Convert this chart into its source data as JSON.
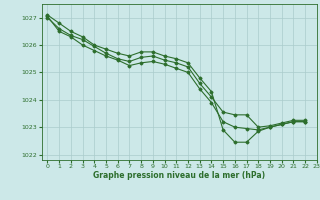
{
  "title": "Graphe pression niveau de la mer (hPa)",
  "xlim": [
    -0.5,
    23
  ],
  "ylim": [
    1021.8,
    1027.5
  ],
  "yticks": [
    1022,
    1023,
    1024,
    1025,
    1026,
    1027
  ],
  "xticks": [
    0,
    1,
    2,
    3,
    4,
    5,
    6,
    7,
    8,
    9,
    10,
    11,
    12,
    13,
    14,
    15,
    16,
    17,
    18,
    19,
    20,
    21,
    22,
    23
  ],
  "background_color": "#cce8e8",
  "grid_color": "#aacccc",
  "line_color": "#2d6e2d",
  "series": [
    [
      1027.1,
      1026.8,
      1026.5,
      1026.3,
      1026.0,
      1025.85,
      1025.7,
      1025.6,
      1025.75,
      1025.75,
      1025.6,
      1025.5,
      1025.35,
      1024.8,
      1024.3,
      1022.9,
      1022.45,
      1022.45,
      1022.85,
      1023.0,
      1023.1,
      1023.2,
      1023.2
    ],
    [
      1027.0,
      1026.6,
      1026.35,
      1026.2,
      1025.95,
      1025.7,
      1025.5,
      1025.4,
      1025.55,
      1025.6,
      1025.45,
      1025.35,
      1025.2,
      1024.6,
      1024.1,
      1023.55,
      1023.45,
      1023.45,
      1023.0,
      1023.05,
      1023.15,
      1023.25,
      1023.25
    ],
    [
      1027.05,
      1026.5,
      1026.3,
      1026.0,
      1025.8,
      1025.6,
      1025.45,
      1025.25,
      1025.35,
      1025.4,
      1025.3,
      1025.15,
      1025.0,
      1024.4,
      1023.9,
      1023.2,
      1023.0,
      1022.95,
      1022.9,
      1023.0,
      1023.1,
      1023.2,
      1023.2
    ]
  ],
  "x_series": [
    0,
    1,
    2,
    3,
    4,
    5,
    6,
    7,
    8,
    9,
    10,
    11,
    12,
    13,
    14,
    15,
    16,
    17,
    18,
    19,
    20,
    21,
    22
  ]
}
